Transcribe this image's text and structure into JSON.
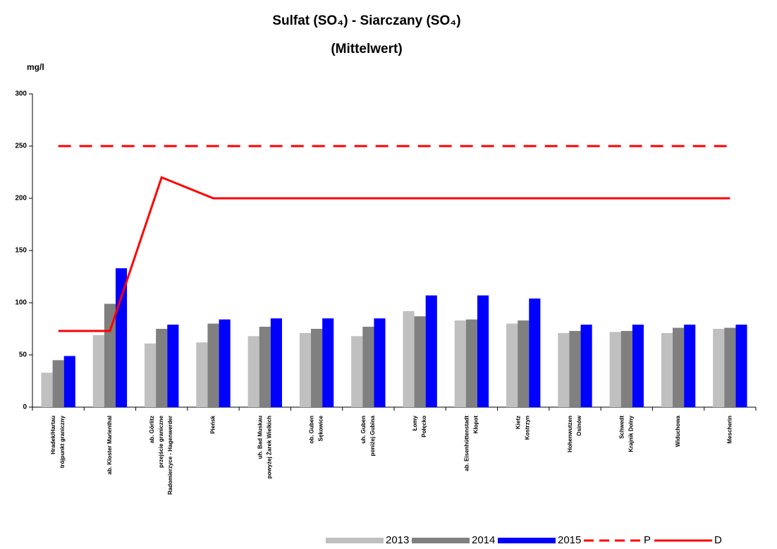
{
  "chart_data": {
    "type": "bar",
    "title": "Sulfat (SO₄) - Siarczany (SO₄)",
    "subtitle": "(Mittelwert)",
    "y_label": "mg/l",
    "categories": [
      "Hradek/Hartau\ntrójpunkt graniczny",
      "ab. Kloster Marienthal",
      "ab. Görlitz\nprzejście graniczne\nRadomierzyce - Hagenwerder",
      "Pieńsk",
      "uh. Bad Muskau\npowyżej Żarek Wielkich",
      "ob. Guben\nSękowice",
      "uh. Guben\nponiżej Gubina",
      "Łomy\nPołęcko",
      "ab. Eisenhüttenstadt\nKłopot",
      "Kietz\nKostrzyn",
      "Hohenwutzen\nOsinów",
      "Schwedt\nKrajnik Dolny",
      "Widuchowa",
      "Mescherin"
    ],
    "series": [
      {
        "name": "2013",
        "color": "#c0c0c0",
        "kind": "bar",
        "values": [
          33,
          69,
          61,
          62,
          68,
          71,
          68,
          92,
          83,
          80,
          71,
          72,
          71,
          75
        ]
      },
      {
        "name": "2014",
        "color": "#808080",
        "kind": "bar",
        "values": [
          45,
          99,
          75,
          80,
          77,
          75,
          77,
          87,
          84,
          83,
          73,
          73,
          76,
          76
        ]
      },
      {
        "name": "2015",
        "color": "#0000ff",
        "kind": "bar",
        "values": [
          49,
          133,
          79,
          84,
          85,
          85,
          85,
          107,
          107,
          104,
          79,
          79,
          79,
          79
        ]
      },
      {
        "name": "P",
        "color": "#ff0000",
        "kind": "line",
        "style": "dashed",
        "values": [
          250,
          250,
          250,
          250,
          250,
          250,
          250,
          250,
          250,
          250,
          250,
          250,
          250,
          250
        ]
      },
      {
        "name": "D",
        "color": "#ff0000",
        "kind": "line",
        "style": "solid",
        "values": [
          73,
          73,
          220,
          200,
          200,
          200,
          200,
          200,
          200,
          200,
          200,
          200,
          200,
          200
        ]
      }
    ],
    "ylim": [
      0,
      300
    ],
    "yticks": [
      0,
      50,
      100,
      150,
      200,
      250,
      300
    ],
    "grid": false
  }
}
